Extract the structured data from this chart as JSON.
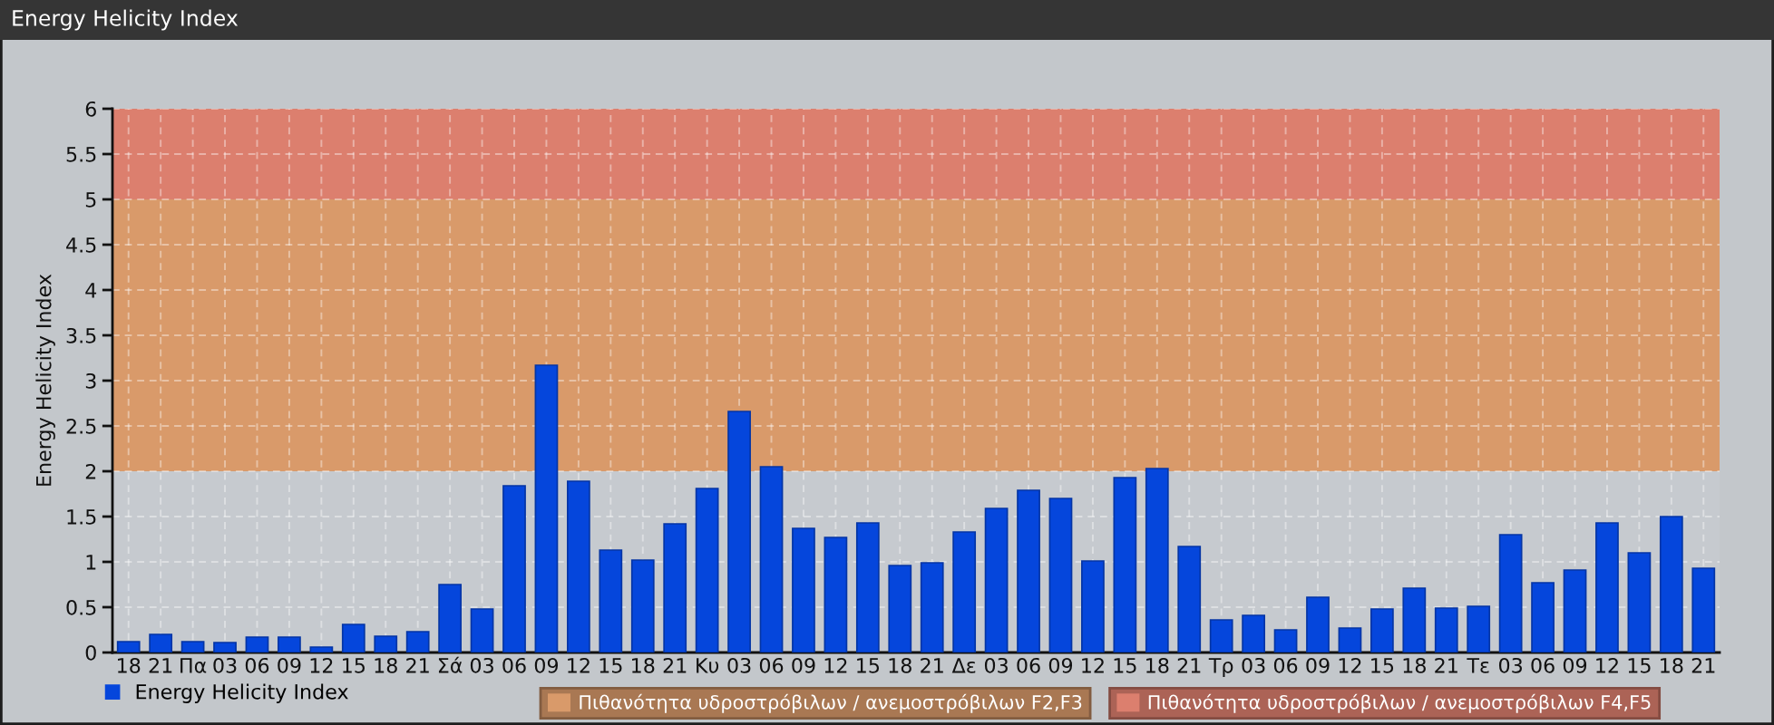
{
  "chart_data": {
    "type": "bar",
    "title": "Energy Helicity Index",
    "ylabel": "Energy Helicity Index",
    "categories": [
      "18",
      "21",
      "Πα",
      "03",
      "06",
      "09",
      "12",
      "15",
      "18",
      "21",
      "Σά",
      "03",
      "06",
      "09",
      "12",
      "15",
      "18",
      "21",
      "Κυ",
      "03",
      "06",
      "09",
      "12",
      "15",
      "18",
      "21",
      "Δε",
      "03",
      "06",
      "09",
      "12",
      "15",
      "18",
      "21",
      "Τρ",
      "03",
      "06",
      "09",
      "12",
      "15",
      "18",
      "21",
      "Τε",
      "03",
      "06",
      "09",
      "12",
      "15",
      "18",
      "21"
    ],
    "series": [
      {
        "name": "Energy Helicity Index",
        "color": "#0546dc",
        "values": [
          0.12,
          0.2,
          0.12,
          0.11,
          0.17,
          0.17,
          0.06,
          0.31,
          0.18,
          0.23,
          0.75,
          0.48,
          1.84,
          3.17,
          1.89,
          1.13,
          1.02,
          1.42,
          1.81,
          2.66,
          2.05,
          1.37,
          1.27,
          1.43,
          0.96,
          0.99,
          1.33,
          1.59,
          1.79,
          1.7,
          1.01,
          1.93,
          2.03,
          1.17,
          0.36,
          0.41,
          0.25,
          0.61,
          0.27,
          0.48,
          0.71,
          0.49,
          0.51,
          1.3,
          0.77,
          0.91,
          1.43,
          1.1,
          1.5,
          0.93
        ]
      }
    ],
    "ylim": [
      0,
      6
    ],
    "yticks": [
      0,
      0.5,
      1,
      1.5,
      2,
      2.5,
      3,
      3.5,
      4,
      4.5,
      5,
      5.5,
      6
    ],
    "grid": true,
    "legend": "bottom left",
    "bands": [
      {
        "axis": "y",
        "from": 2,
        "to": 5,
        "label": "Πιθανότητα υδροστρόβιλων / ανεμοστρόβιλων F2,F3",
        "color": "#d99a6a"
      },
      {
        "axis": "y",
        "from": 5,
        "to": 6,
        "label": "Πιθανότητα υδροστρόβιλων / ανεμοστρόβιλων F4,F5",
        "color": "#dc7f6e"
      }
    ]
  }
}
